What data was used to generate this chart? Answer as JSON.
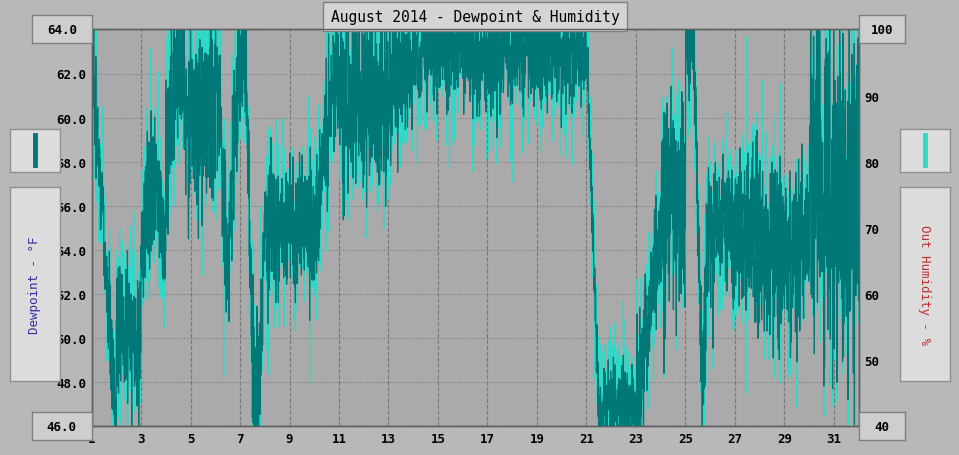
{
  "title": "August 2014 - Dewpoint & Humidity",
  "ylabel_left": "Dewpoint - °F",
  "ylabel_right": "Out Humidity - %",
  "ylim_left": [
    46.0,
    64.0
  ],
  "ylim_right": [
    40,
    100
  ],
  "yticks_left": [
    46.0,
    48.0,
    50.0,
    52.0,
    54.0,
    56.0,
    58.0,
    60.0,
    62.0,
    64.0
  ],
  "yticks_right": [
    40,
    50,
    60,
    70,
    80,
    90,
    100
  ],
  "xticks": [
    1,
    3,
    5,
    7,
    9,
    11,
    13,
    15,
    17,
    19,
    21,
    23,
    25,
    27,
    29,
    31
  ],
  "xlim": [
    1,
    32
  ],
  "dewpoint_color": "#007878",
  "humidity_color": "#30D8C8",
  "bg_color": "#B8B8B8",
  "plot_bg_color": "#AAAAAA",
  "grid_h_style": "dotted",
  "grid_v_style": "dashed",
  "grid_color": "#787878",
  "title_box_facecolor": "#D4D4D4",
  "title_box_edgecolor": "#808080",
  "label_box_facecolor": "#DCDCDC",
  "corner_box_facecolor": "#CECECE",
  "corner_box_edgecolor": "#808080"
}
